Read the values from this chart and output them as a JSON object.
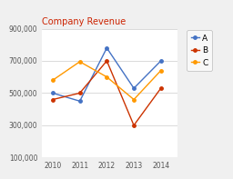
{
  "title": "Company Revenue",
  "years": [
    2010,
    2011,
    2012,
    2013,
    2014
  ],
  "series": {
    "A": [
      500000,
      450000,
      780000,
      530000,
      700000
    ],
    "B": [
      460000,
      500000,
      700000,
      300000,
      530000
    ],
    "C": [
      580000,
      695000,
      600000,
      460000,
      640000
    ]
  },
  "colors": {
    "A": "#4472C4",
    "B": "#CC3300",
    "C": "#FF9900"
  },
  "ylim": [
    100000,
    900000
  ],
  "yticks": [
    100000,
    300000,
    500000,
    700000,
    900000
  ],
  "background_color": "#f0f0f0",
  "plot_bg_color": "#ffffff",
  "grid_color": "#cccccc",
  "title_color": "#cc2200",
  "title_fontsize": 7,
  "tick_fontsize": 5.5,
  "legend_fontsize": 6.5
}
